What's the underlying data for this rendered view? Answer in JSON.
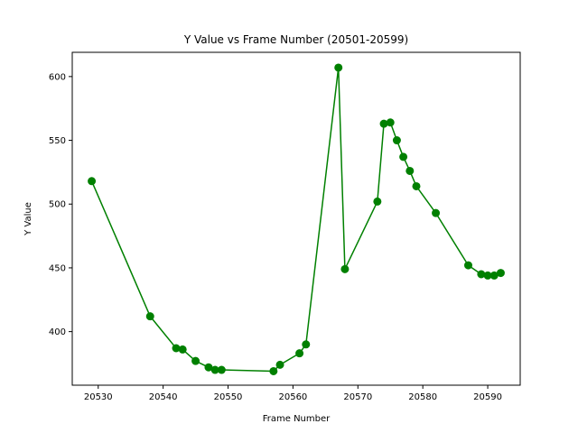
{
  "chart_data": {
    "type": "line",
    "title": "Y Value vs Frame Number (20501-20599)",
    "xlabel": "Frame Number",
    "ylabel": "Y Value",
    "xlim": [
      20526,
      20595
    ],
    "ylim": [
      358,
      619
    ],
    "xticks": [
      20530,
      20540,
      20550,
      20560,
      20570,
      20580,
      20590
    ],
    "yticks": [
      400,
      450,
      500,
      550,
      600
    ],
    "grid": false,
    "series": [
      {
        "color": "#008000",
        "marker": "circle",
        "points": [
          [
            20529,
            518
          ],
          [
            20538,
            412
          ],
          [
            20542,
            387
          ],
          [
            20543,
            386
          ],
          [
            20545,
            377
          ],
          [
            20547,
            372
          ],
          [
            20548,
            370
          ],
          [
            20549,
            370
          ],
          [
            20557,
            369
          ],
          [
            20558,
            374
          ],
          [
            20561,
            383
          ],
          [
            20562,
            390
          ],
          [
            20567,
            607
          ],
          [
            20568,
            449
          ],
          [
            20573,
            502
          ],
          [
            20574,
            563
          ],
          [
            20575,
            564
          ],
          [
            20576,
            550
          ],
          [
            20577,
            537
          ],
          [
            20578,
            526
          ],
          [
            20579,
            514
          ],
          [
            20582,
            493
          ],
          [
            20587,
            452
          ],
          [
            20589,
            445
          ],
          [
            20590,
            444
          ],
          [
            20591,
            444
          ],
          [
            20592,
            446
          ]
        ]
      }
    ]
  }
}
